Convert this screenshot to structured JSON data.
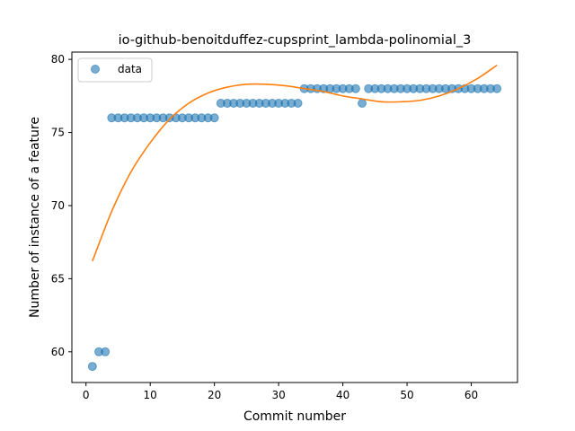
{
  "chart_data": {
    "type": "scatter",
    "title": "io-github-benoitduffez-cupsprint_lambda-polinomial_3",
    "xlabel": "Commit number",
    "ylabel": "Number of instance of a feature",
    "xlim": [
      -2.2,
      67.2
    ],
    "ylim": [
      57.9,
      80.5
    ],
    "xticks": [
      0,
      10,
      20,
      30,
      40,
      50,
      60
    ],
    "yticks": [
      60,
      65,
      70,
      75,
      80
    ],
    "grid": false,
    "legend": {
      "position": "top-left",
      "entries": [
        "data"
      ]
    },
    "colors": {
      "data": "#1f77b4",
      "fit": "#ff7f0e"
    },
    "series": [
      {
        "name": "data",
        "kind": "scatter",
        "x": [
          1,
          2,
          3,
          4,
          5,
          6,
          7,
          8,
          9,
          10,
          11,
          12,
          13,
          14,
          15,
          16,
          17,
          18,
          19,
          20,
          21,
          22,
          23,
          24,
          25,
          26,
          27,
          28,
          29,
          30,
          31,
          32,
          33,
          34,
          35,
          36,
          37,
          38,
          39,
          40,
          41,
          42,
          43,
          44,
          45,
          46,
          47,
          48,
          49,
          50,
          51,
          52,
          53,
          54,
          55,
          56,
          57,
          58,
          59,
          60,
          61,
          62,
          63,
          64
        ],
        "y": [
          59,
          60,
          60,
          76,
          76,
          76,
          76,
          76,
          76,
          76,
          76,
          76,
          76,
          76,
          76,
          76,
          76,
          76,
          76,
          76,
          77,
          77,
          77,
          77,
          77,
          77,
          77,
          77,
          77,
          77,
          77,
          77,
          77,
          78,
          78,
          78,
          78,
          78,
          78,
          78,
          78,
          78,
          77,
          78,
          78,
          78,
          78,
          78,
          78,
          78,
          78,
          78,
          78,
          78,
          78,
          78,
          78,
          78,
          78,
          78,
          78,
          78,
          78,
          78
        ]
      },
      {
        "kind": "line",
        "x": [
          1,
          4,
          7,
          10,
          13,
          16,
          19,
          22,
          25,
          28,
          31,
          34,
          37,
          40,
          43,
          46,
          49,
          52,
          55,
          58,
          61,
          64
        ],
        "y": [
          66.2,
          69.6,
          72.3,
          74.3,
          75.9,
          77.0,
          77.7,
          78.1,
          78.3,
          78.3,
          78.2,
          78.0,
          77.8,
          77.5,
          77.3,
          77.1,
          77.1,
          77.2,
          77.5,
          78.0,
          78.7,
          79.6
        ]
      }
    ]
  }
}
